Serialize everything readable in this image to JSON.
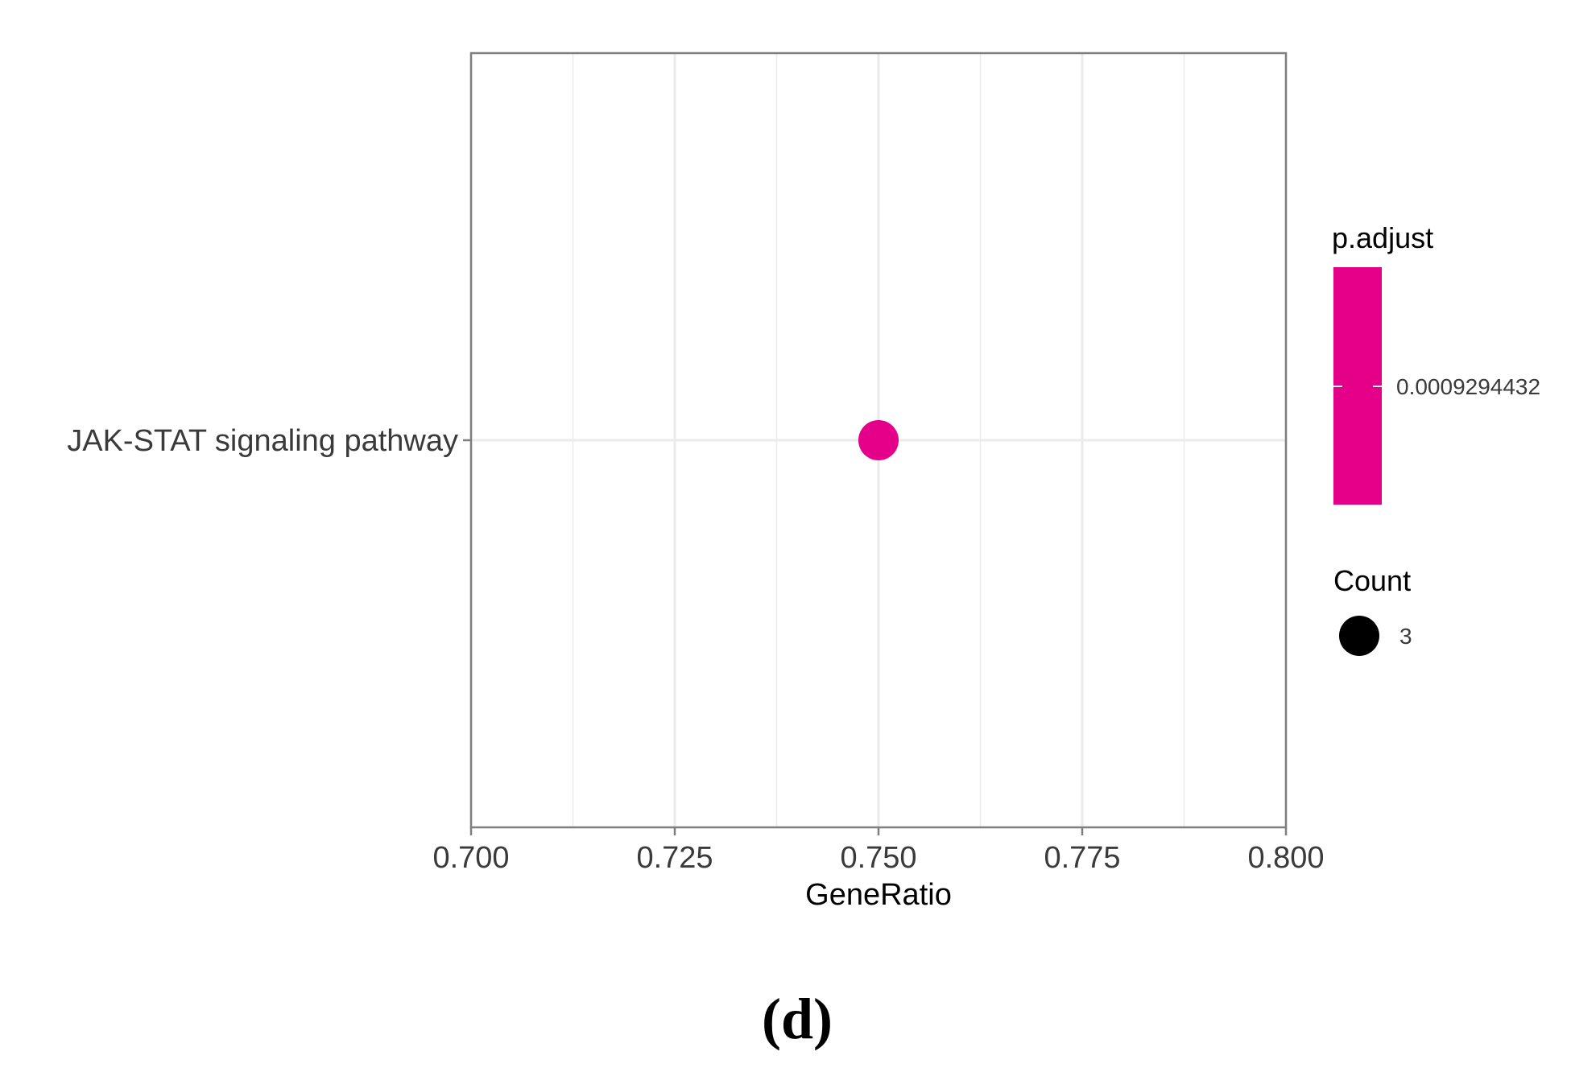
{
  "chart_data": {
    "type": "scatter",
    "x": [
      0.75
    ],
    "y": [
      "JAK-STAT signaling pathway"
    ],
    "xlabel": "GeneRatio",
    "ylabel": "",
    "xlim": [
      0.7,
      0.8
    ],
    "xticks": [
      "0.700",
      "0.725",
      "0.750",
      "0.775",
      "0.800"
    ],
    "yticks": [
      "JAK-STAT signaling pathway"
    ],
    "grid": true,
    "points": [
      {
        "pathway": "JAK-STAT signaling pathway",
        "gene_ratio": 0.75,
        "count": 3,
        "p_adjust": 0.0009294432
      }
    ],
    "legend_position": "right",
    "color_legend": {
      "title": "p.adjust",
      "label": "0.0009294432",
      "color": "#e5008a"
    },
    "size_legend": {
      "title": "Count",
      "label": "3"
    }
  },
  "panel_label": "(d)",
  "colors": {
    "point": "#e5008a",
    "grid": "#ebebeb",
    "border": "#7f7f7f",
    "size_key": "#000000"
  }
}
